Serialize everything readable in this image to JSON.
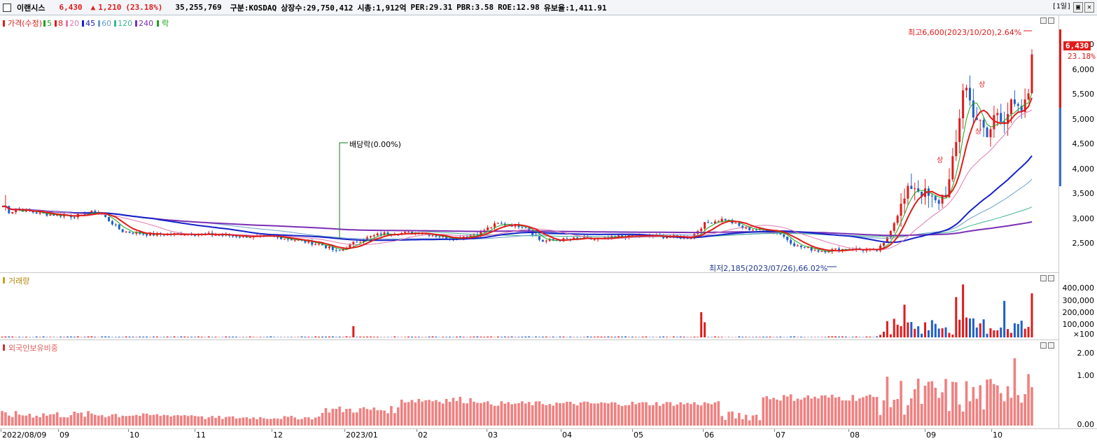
{
  "header": {
    "name": "이랜시스",
    "price": "6,430",
    "arrow": "▲",
    "change": "1,210",
    "change_pct": "(23.18%)",
    "volume": "35,255,769",
    "market": "구분:KOSDAQ",
    "shares": "상장수:29,750,412",
    "mktcap": "시총:1,912억",
    "per": "PER:29.31",
    "pbr": "PBR:3.58",
    "roe": "ROE:12.98",
    "reserve": "유보율:1,411.91",
    "period_button": "[1일]",
    "restore_button": "▣",
    "close_button": "✕"
  },
  "price_panel": {
    "legend": {
      "price_label": "가격(수정)",
      "ma": [
        {
          "label": "5",
          "color": "#1aa31a"
        },
        {
          "label": "8",
          "color": "#e11b1b"
        },
        {
          "label": "20",
          "color": "#e07ab0"
        },
        {
          "label": "45",
          "color": "#1522c9"
        },
        {
          "label": "60",
          "color": "#6aa0c8"
        },
        {
          "label": "120",
          "color": "#3fb48f"
        },
        {
          "label": "240",
          "color": "#7b2fb5"
        }
      ],
      "ex_label": "락"
    },
    "yticks": [
      "6,500",
      "6,000",
      "5,500",
      "5,000",
      "4,500",
      "4,000",
      "3,500",
      "3,000",
      "2,500"
    ],
    "current_price": "6,430",
    "current_pct": "23.18%",
    "annotations": {
      "high": "최고6,600(2023/10/20),2.64%",
      "low": "최저2,185(2023/07/26),66.02%",
      "dividend": "배당락(0.00%)",
      "up_marker": "상"
    }
  },
  "volume_panel": {
    "legend": "거래량",
    "yticks": [
      "400,000",
      "300,000",
      "200,000",
      "100,000",
      "×100"
    ]
  },
  "foreign_panel": {
    "legend": "외국인보유비중",
    "yticks": [
      "2.00",
      "1.00",
      "0.00"
    ]
  },
  "xaxis": {
    "labels": [
      "2022/08/09",
      "09",
      "10",
      "11",
      "12",
      "2023/01",
      "02",
      "03",
      "04",
      "05",
      "06",
      "07",
      "08",
      "09",
      "10"
    ]
  },
  "colors": {
    "up": "#e11b1b",
    "down": "#1f5fc8",
    "ma240": "#7b2fb5",
    "ma45": "#1522c9",
    "foreign_bar": "#f08080"
  }
}
